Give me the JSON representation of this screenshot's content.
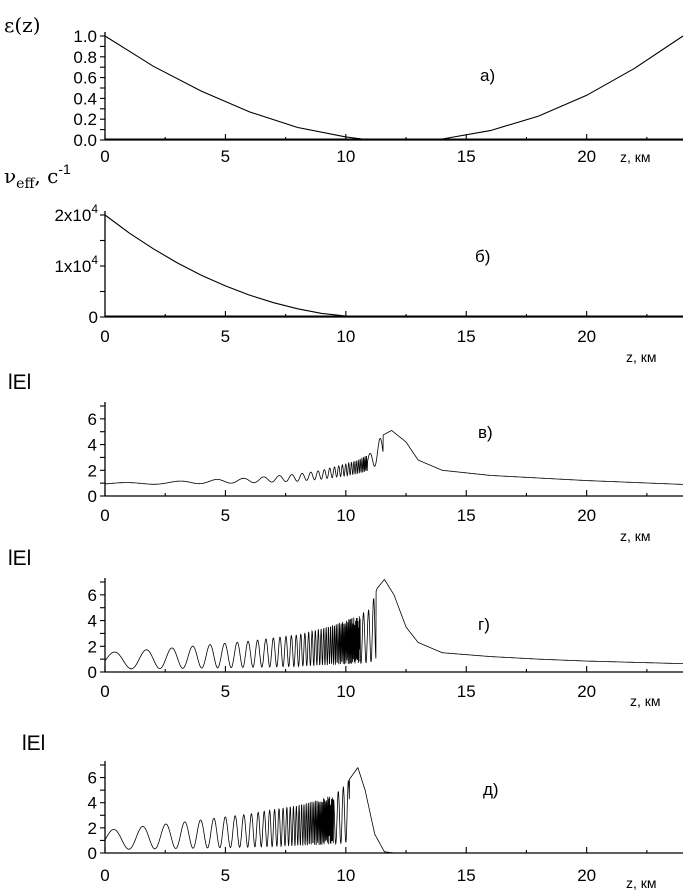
{
  "chart_data": [
    {
      "type": "line",
      "panel_label": "а)",
      "ylabel": "ε(z)",
      "xlabel": "z, км",
      "xlim": [
        0,
        24
      ],
      "ylim": [
        0,
        1.0
      ],
      "xticks": [
        "0",
        "5",
        "10",
        "15",
        "20"
      ],
      "yticks": [
        "0.0",
        "0.2",
        "0.4",
        "0.6",
        "0.8",
        "1.0"
      ],
      "series": [
        {
          "x": [
            0,
            2,
            4,
            6,
            8,
            10,
            11,
            12,
            13,
            14,
            16,
            18,
            20,
            22,
            24
          ],
          "y": [
            1.0,
            0.71,
            0.47,
            0.27,
            0.12,
            0.03,
            0.0,
            0.0,
            0.0,
            0.01,
            0.09,
            0.23,
            0.43,
            0.69,
            1.0
          ]
        }
      ]
    },
    {
      "type": "line",
      "panel_label": "б)",
      "ylabel": "ν_eff, с⁻¹",
      "ylabel_main": "ν",
      "ylabel_sub": "eff",
      "ylabel_unit": ", с",
      "ylabel_exp": "-1",
      "xlabel": "z, км",
      "xlim": [
        0,
        24
      ],
      "ylim": [
        0,
        20000
      ],
      "xticks": [
        "0",
        "5",
        "10",
        "15",
        "20"
      ],
      "yticks": [
        {
          "value": 0,
          "base": "0",
          "exp": ""
        },
        {
          "value": 10000,
          "base": "1x10",
          "exp": "4"
        },
        {
          "value": 20000,
          "base": "2x10",
          "exp": "4"
        }
      ],
      "series": [
        {
          "x": [
            0,
            1,
            2,
            3,
            4,
            5,
            6,
            7,
            8,
            9,
            10,
            11,
            24
          ],
          "y": [
            20000,
            16500,
            13400,
            10600,
            8200,
            6100,
            4300,
            2800,
            1600,
            700,
            200,
            0,
            0
          ]
        }
      ]
    },
    {
      "type": "line",
      "panel_label": "в)",
      "ylabel": "lEl",
      "xlabel": "z, км",
      "xlim": [
        0,
        24
      ],
      "ylim": [
        0,
        7
      ],
      "xticks": [
        "0",
        "5",
        "10",
        "15",
        "20"
      ],
      "yticks": [
        "0",
        "2",
        "4",
        "6"
      ],
      "series": [
        {
          "x": [
            0,
            3,
            6,
            8,
            9,
            10,
            10.5,
            11,
            11.5,
            11.9,
            12.5,
            13,
            14,
            16,
            18,
            20,
            22,
            24
          ],
          "y": [
            1.0,
            1.15,
            1.4,
            1.7,
            2.0,
            2.5,
            2.8,
            3.3,
            4.7,
            5.1,
            4.2,
            2.8,
            2.0,
            1.6,
            1.4,
            1.2,
            1.05,
            0.9
          ]
        }
      ]
    },
    {
      "type": "line",
      "panel_label": "г)",
      "ylabel": "lEl",
      "xlabel": "z, км",
      "xlim": [
        0,
        24
      ],
      "ylim": [
        0,
        7
      ],
      "xticks": [
        "0",
        "5",
        "10",
        "15",
        "20"
      ],
      "yticks": [
        "0",
        "2",
        "4",
        "6"
      ],
      "series": [
        {
          "x": [
            0,
            3,
            6,
            8,
            9,
            10,
            10.5,
            11,
            11.3,
            11.6,
            12,
            12.5,
            13,
            14,
            16,
            18,
            20,
            22,
            24
          ],
          "y": [
            1.5,
            1.9,
            2.4,
            2.9,
            3.4,
            4.0,
            4.4,
            4.9,
            6.5,
            7.2,
            6.0,
            3.5,
            2.3,
            1.5,
            1.2,
            1.0,
            0.85,
            0.75,
            0.65
          ]
        }
      ]
    },
    {
      "type": "line",
      "panel_label": "д)",
      "ylabel": "lEl",
      "xlabel": "z, км",
      "xlim": [
        0,
        24
      ],
      "ylim": [
        0,
        7
      ],
      "xticks": [
        "0",
        "5",
        "10",
        "15",
        "20"
      ],
      "yticks": [
        "0",
        "2",
        "4",
        "6"
      ],
      "series": [
        {
          "x": [
            0,
            3,
            6,
            8,
            9,
            9.8,
            10.2,
            10.5,
            10.8,
            11.2,
            11.6,
            12,
            24
          ],
          "y": [
            1.8,
            2.4,
            3.1,
            3.8,
            4.3,
            5.0,
            6.0,
            6.8,
            5.0,
            1.5,
            0.1,
            0.0,
            0.0
          ]
        }
      ]
    }
  ]
}
